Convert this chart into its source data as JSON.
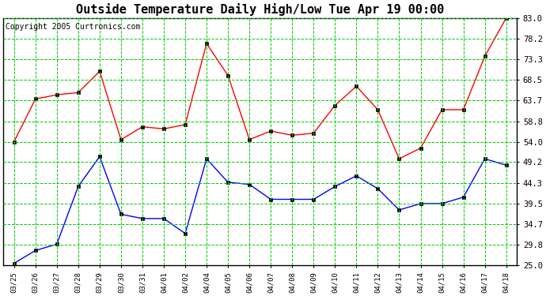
{
  "title": "Outside Temperature Daily High/Low Tue Apr 19 00:00",
  "copyright": "Copyright 2005 Curtronics.com",
  "x_labels": [
    "03/25",
    "03/26",
    "03/27",
    "03/28",
    "03/29",
    "03/30",
    "03/31",
    "04/01",
    "04/02",
    "04/04",
    "04/05",
    "04/06",
    "04/07",
    "04/08",
    "04/09",
    "04/10",
    "04/11",
    "04/12",
    "04/13",
    "04/14",
    "04/15",
    "04/16",
    "04/17",
    "04/18"
  ],
  "high_temps": [
    54.0,
    64.0,
    65.0,
    65.5,
    70.5,
    54.5,
    57.5,
    57.0,
    58.0,
    77.0,
    69.5,
    54.5,
    56.5,
    55.5,
    56.0,
    62.5,
    67.0,
    61.5,
    50.0,
    52.5,
    61.5,
    61.5,
    74.0,
    83.0
  ],
  "low_temps": [
    25.5,
    28.5,
    30.0,
    43.5,
    50.5,
    37.0,
    36.0,
    36.0,
    32.5,
    50.0,
    44.5,
    44.0,
    40.5,
    40.5,
    40.5,
    43.5,
    46.0,
    43.0,
    38.0,
    39.5,
    39.5,
    41.0,
    50.0,
    48.5
  ],
  "y_ticks": [
    25.0,
    29.8,
    34.7,
    39.5,
    44.3,
    49.2,
    54.0,
    58.8,
    63.7,
    68.5,
    73.3,
    78.2,
    83.0
  ],
  "ylim": [
    25.0,
    83.0
  ],
  "high_color": "#ff0000",
  "low_color": "#0000ff",
  "grid_color": "#00cc00",
  "bg_color": "#ffffff",
  "title_fontsize": 11,
  "copyright_fontsize": 7,
  "marker": "s",
  "marker_size": 2.5,
  "line_width": 1.0
}
